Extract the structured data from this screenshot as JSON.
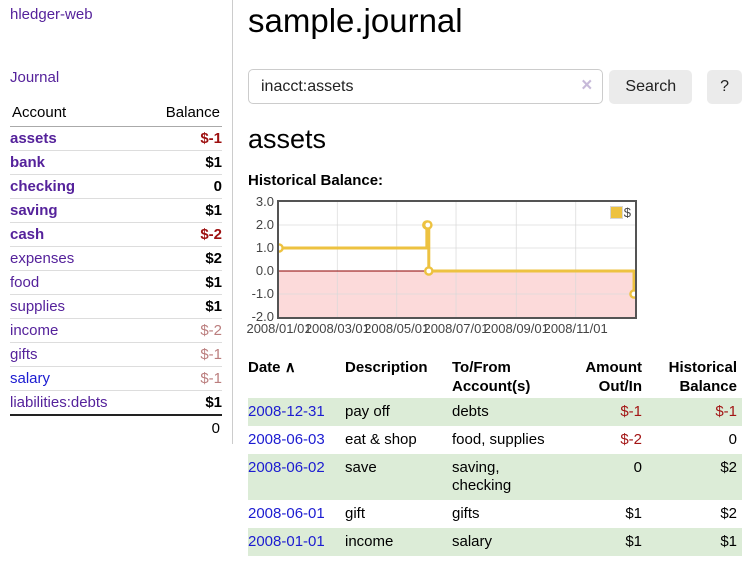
{
  "app": {
    "brand": "hledger-web"
  },
  "sidebar": {
    "journal_label": "Journal",
    "accounts_table": {
      "headers": {
        "account": "Account",
        "balance": "Balance"
      },
      "rows": [
        {
          "name": "assets",
          "level": 1,
          "balance": "$-1",
          "matched": true,
          "balance_class": "neg",
          "link_color": "purple"
        },
        {
          "name": "bank",
          "level": 2,
          "balance": "$1",
          "matched": true,
          "balance_class": "pos",
          "link_color": "purple"
        },
        {
          "name": "checking",
          "level": 3,
          "balance": "0",
          "matched": true,
          "balance_class": "pos",
          "link_color": "purple"
        },
        {
          "name": "saving",
          "level": 3,
          "balance": "$1",
          "matched": true,
          "balance_class": "pos",
          "link_color": "purple"
        },
        {
          "name": "cash",
          "level": 2,
          "balance": "$-2",
          "matched": true,
          "balance_class": "neg",
          "link_color": "purple"
        },
        {
          "name": "expenses",
          "level": 1,
          "balance": "$2",
          "matched": false,
          "balance_class": "pos",
          "link_color": "purple"
        },
        {
          "name": "food",
          "level": 2,
          "balance": "$1",
          "matched": false,
          "balance_class": "pos",
          "link_color": "purple"
        },
        {
          "name": "supplies",
          "level": 2,
          "balance": "$1",
          "matched": false,
          "balance_class": "pos",
          "link_color": "purple"
        },
        {
          "name": "income",
          "level": 1,
          "balance": "$-2",
          "matched": false,
          "balance_class": "negdim",
          "link_color": "purple"
        },
        {
          "name": "gifts",
          "level": 2,
          "balance": "$-1",
          "matched": false,
          "balance_class": "negdim",
          "link_color": "purple"
        },
        {
          "name": "salary",
          "level": 2,
          "balance": "$-1",
          "matched": false,
          "balance_class": "negdim",
          "link_color": "blue"
        },
        {
          "name": "liabilities:debts",
          "level": 1,
          "balance": "$1",
          "matched": false,
          "balance_class": "pos",
          "link_color": "purple"
        }
      ],
      "total": "0"
    }
  },
  "main": {
    "title": "sample.journal",
    "search": {
      "value": "inacct:assets",
      "clear_icon": "×",
      "button_label": "Search",
      "help_label": "?"
    },
    "heading": "assets",
    "chart_label": "Historical Balance:",
    "register_table": {
      "headers": {
        "date": "Date",
        "sort_indicator": "∧",
        "description": "Description",
        "account_line1": "To/From",
        "account_line2": "Account(s)",
        "amount_line1": "Amount",
        "amount_line2": "Out/In",
        "balance_line1": "Historical",
        "balance_line2": "Balance"
      },
      "rows": [
        {
          "date": "2008-12-31",
          "description": "pay off",
          "accounts": "debts",
          "amount": "$-1",
          "amount_negative": true,
          "balance": "$-1",
          "balance_negative": true,
          "stripe": true
        },
        {
          "date": "2008-06-03",
          "description": "eat & shop",
          "accounts": "food, supplies",
          "amount": "$-2",
          "amount_negative": true,
          "balance": "0",
          "balance_negative": false,
          "stripe": false
        },
        {
          "date": "2008-06-02",
          "description": "save",
          "accounts": "saving,\nchecking",
          "amount": "0",
          "amount_negative": false,
          "balance": "$2",
          "balance_negative": false,
          "stripe": true
        },
        {
          "date": "2008-06-01",
          "description": "gift",
          "accounts": "gifts",
          "amount": "$1",
          "amount_negative": false,
          "balance": "$2",
          "balance_negative": false,
          "stripe": false
        },
        {
          "date": "2008-01-01",
          "description": "income",
          "accounts": "salary",
          "amount": "$1",
          "amount_negative": false,
          "balance": "$1",
          "balance_negative": false,
          "stripe": true
        }
      ]
    }
  },
  "chart_data": {
    "type": "line",
    "subtype": "step",
    "title": "Historical Balance:",
    "legend": "$",
    "legend_position": "top-right",
    "grid": true,
    "x_range": [
      "2008-01-01",
      "2009-01-01"
    ],
    "y_range": [
      -2.0,
      3.0
    ],
    "y_ticks": [
      "3.0",
      "2.0",
      "1.0",
      "0.0",
      "-1.0",
      "-2.0"
    ],
    "x_ticks": [
      {
        "date": "2008-01-01",
        "label": "2008/01/01"
      },
      {
        "date": "2008-03-01",
        "label": "2008/03/01"
      },
      {
        "date": "2008-05-01",
        "label": "2008/05/01"
      },
      {
        "date": "2008-07-01",
        "label": "2008/07/01"
      },
      {
        "date": "2008-09-01",
        "label": "2008/09/01"
      },
      {
        "date": "2008-11-01",
        "label": "2008/11/01"
      },
      {
        "date": "2009-01-01",
        "label": ""
      }
    ],
    "series": [
      {
        "name": "$",
        "color": "#edc240",
        "points": [
          [
            "2008-01-01",
            1.0
          ],
          [
            "2008-06-01",
            2.0
          ],
          [
            "2008-06-02",
            2.0
          ],
          [
            "2008-06-03",
            0.0
          ],
          [
            "2008-12-31",
            -1.0
          ]
        ]
      }
    ],
    "zero_line_color": "#8b0000",
    "negative_region_color": "#fcdada",
    "grid_color": "#d9d9d9",
    "border_color": "#545454"
  }
}
